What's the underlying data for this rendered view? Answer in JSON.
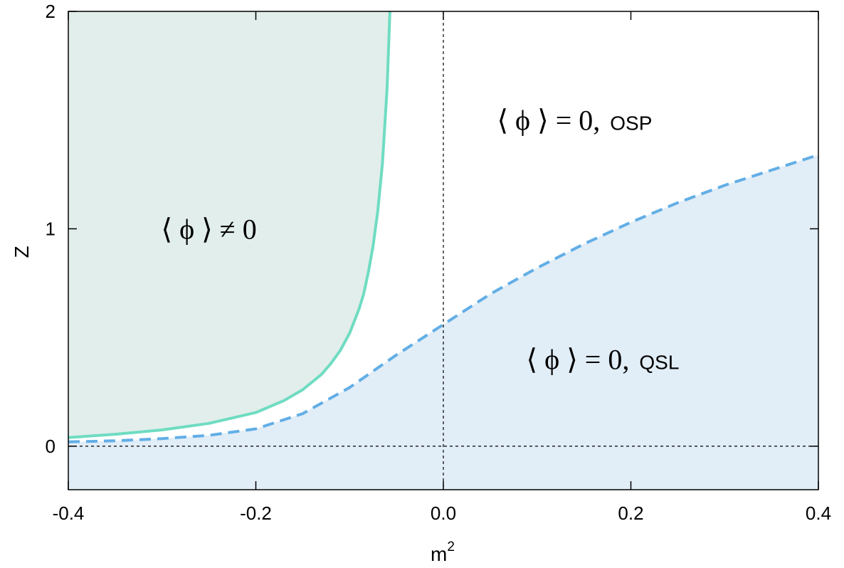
{
  "chart_data": {
    "type": "line",
    "xlabel": "m",
    "xlabel_superscript": "2",
    "ylabel": "Z",
    "xlim": [
      -0.4,
      0.4
    ],
    "ylim": [
      -0.2,
      2.0
    ],
    "xticks": [
      -0.4,
      -0.2,
      0.0,
      0.2,
      0.4
    ],
    "xtick_labels": [
      "-0.4",
      "-0.2",
      "0.0",
      "0.2",
      "0.4"
    ],
    "yticks": [
      0,
      1,
      2
    ],
    "ytick_labels": [
      "0",
      "1",
      "2"
    ],
    "reference_lines": {
      "x": 0,
      "y": 0,
      "style": "dotted"
    },
    "series": [
      {
        "style": "solid",
        "color": "#6fdcc2",
        "fill_color": "#e2eeeb",
        "fill": "left",
        "x": [
          -0.4,
          -0.35,
          -0.3,
          -0.25,
          -0.2,
          -0.17,
          -0.15,
          -0.13,
          -0.12,
          -0.11,
          -0.1,
          -0.09,
          -0.085,
          -0.08,
          -0.075,
          -0.07,
          -0.065,
          -0.06,
          -0.057
        ],
        "y": [
          0.04,
          0.055,
          0.075,
          0.105,
          0.155,
          0.21,
          0.26,
          0.33,
          0.38,
          0.44,
          0.52,
          0.63,
          0.7,
          0.8,
          0.92,
          1.08,
          1.3,
          1.65,
          2.0
        ]
      },
      {
        "style": "dashed",
        "color": "#62aee6",
        "fill_color": "#e1edf7",
        "fill": "below",
        "x": [
          -0.4,
          -0.35,
          -0.3,
          -0.25,
          -0.2,
          -0.15,
          -0.1,
          -0.05,
          0.0,
          0.05,
          0.1,
          0.15,
          0.2,
          0.25,
          0.3,
          0.35,
          0.4
        ],
        "y": [
          0.02,
          0.025,
          0.035,
          0.05,
          0.08,
          0.15,
          0.27,
          0.42,
          0.56,
          0.7,
          0.82,
          0.93,
          1.03,
          1.12,
          1.2,
          1.27,
          1.34
        ]
      }
    ],
    "annotations": [
      {
        "math": "⟨ ϕ ⟩ ≠ 0",
        "text": "",
        "x": -0.25,
        "y": 1.0
      },
      {
        "math": "⟨ ϕ ⟩ = 0,",
        "text": "OSP",
        "x": 0.14,
        "y": 1.5
      },
      {
        "math": "⟨ ϕ ⟩ = 0,",
        "text": "QSL",
        "x": 0.17,
        "y": 0.4
      }
    ]
  }
}
